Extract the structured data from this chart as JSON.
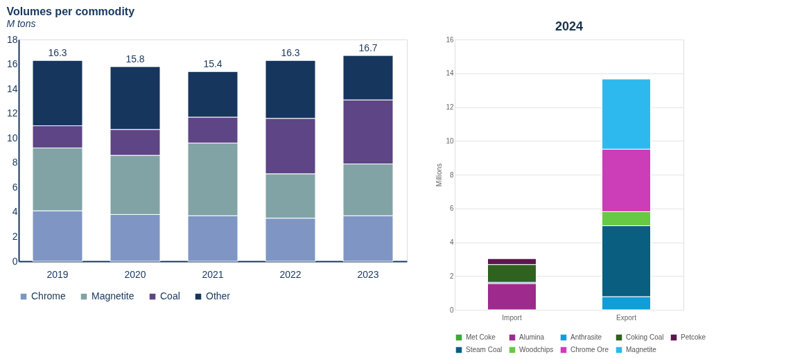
{
  "chart_data": [
    {
      "type": "bar",
      "title": "Volumes per commodity",
      "subtitle": "M tons",
      "stacked": true,
      "categories": [
        "2019",
        "2020",
        "2021",
        "2022",
        "2023"
      ],
      "ylim": [
        0,
        18
      ],
      "yticks": [
        0,
        2,
        4,
        6,
        8,
        10,
        12,
        14,
        16,
        18
      ],
      "grid": false,
      "legend": "bottom",
      "totals": [
        "16.3",
        "15.8",
        "15.4",
        "16.3",
        "16.7"
      ],
      "series": [
        {
          "name": "Chrome",
          "color": "#7f96c4",
          "values": [
            4.1,
            3.8,
            3.7,
            3.5,
            3.7
          ]
        },
        {
          "name": "Magnetite",
          "color": "#82a3a5",
          "values": [
            5.1,
            4.8,
            5.9,
            3.6,
            4.2
          ]
        },
        {
          "name": "Coal",
          "color": "#5e4585",
          "values": [
            1.8,
            2.1,
            2.1,
            4.5,
            5.2
          ]
        },
        {
          "name": "Other",
          "color": "#17365d",
          "values": [
            5.3,
            5.1,
            3.7,
            4.7,
            3.6
          ]
        }
      ]
    },
    {
      "type": "bar",
      "title": "2024",
      "ylabel": "Millions",
      "stacked": true,
      "categories": [
        "Import",
        "Export"
      ],
      "ylim": [
        0,
        16
      ],
      "yticks": [
        0,
        2,
        4,
        6,
        8,
        10,
        12,
        14,
        16
      ],
      "grid": "y",
      "legend": "bottom",
      "series": [
        {
          "name": "Met Coke",
          "color": "#3aaa35",
          "values": [
            null,
            null
          ]
        },
        {
          "name": "Alumina",
          "color": "#9e2a8e",
          "values": [
            1.55,
            null
          ]
        },
        {
          "name": "Anthrasite",
          "color": "#0e9fd8",
          "values": [
            0.08,
            0.78
          ]
        },
        {
          "name": "Coking Coal",
          "color": "#2f611f",
          "values": [
            1.05,
            null
          ]
        },
        {
          "name": "Petcoke",
          "color": "#5c1650",
          "values": [
            0.35,
            null
          ]
        },
        {
          "name": "Steam Coal",
          "color": "#0a5e80",
          "values": [
            null,
            4.2
          ]
        },
        {
          "name": "Woodchips",
          "color": "#68c944",
          "values": [
            null,
            0.83
          ]
        },
        {
          "name": "Chrome Ore",
          "color": "#cc3db8",
          "values": [
            null,
            3.7
          ]
        },
        {
          "name": "Magnetite",
          "color": "#2eb9ee",
          "values": [
            null,
            4.15
          ]
        }
      ]
    }
  ]
}
